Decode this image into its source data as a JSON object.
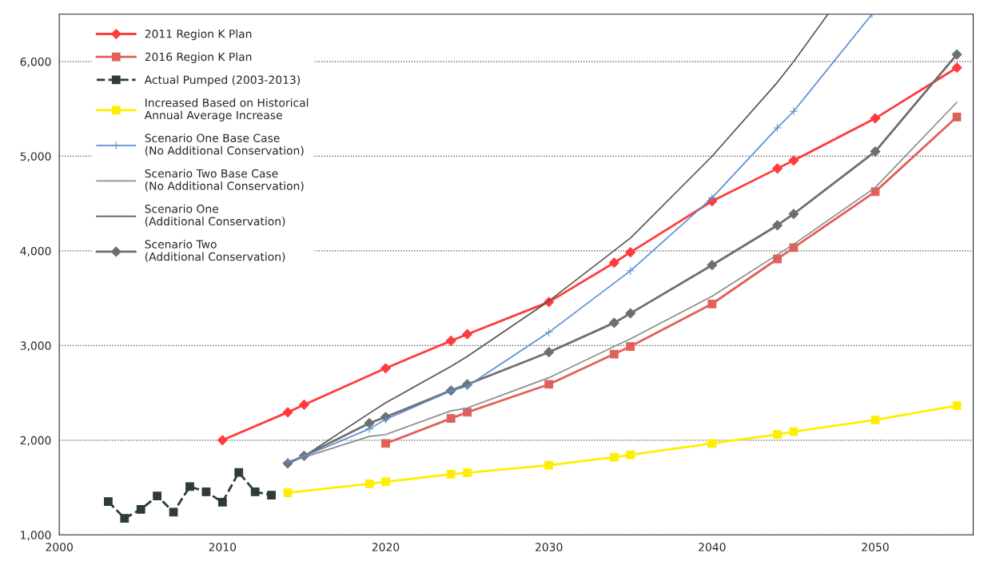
{
  "chart_data": {
    "type": "line",
    "xlim": [
      2000,
      2056
    ],
    "ylim": [
      1000,
      6500
    ],
    "xticks": [
      2000,
      2010,
      2020,
      2030,
      2040,
      2050
    ],
    "yticks": [
      {
        "value": 1000,
        "label": "1,000"
      },
      {
        "value": 2000,
        "label": "2,000"
      },
      {
        "value": 3000,
        "label": "3,000"
      },
      {
        "value": 4000,
        "label": "4,000"
      },
      {
        "value": 5000,
        "label": "5,000"
      },
      {
        "value": 6000,
        "label": "6,000"
      }
    ],
    "grid": "y",
    "legend": "top left",
    "series": [
      {
        "name": "2011 Region K Plan",
        "color": "#ff3b3b",
        "marker": "diamond",
        "line_style": "solid",
        "x": [
          2010,
          2014,
          2015,
          2020,
          2024,
          2025,
          2030,
          2034,
          2035,
          2040,
          2044,
          2045,
          2050,
          2055
        ],
        "values": [
          2000,
          2295,
          2375,
          2760,
          3050,
          3120,
          3460,
          3875,
          3985,
          4525,
          4870,
          4955,
          5400,
          5935
        ]
      },
      {
        "name": "2016 Region K Plan",
        "color": "#e0605a",
        "marker": "square",
        "line_style": "solid",
        "x": [
          2020,
          2024,
          2025,
          2030,
          2034,
          2035,
          2040,
          2044,
          2045,
          2050,
          2055
        ],
        "values": [
          1965,
          2230,
          2295,
          2590,
          2910,
          2990,
          3440,
          3915,
          4035,
          4625,
          5415
        ]
      },
      {
        "name": "Actual Pumped (2003-2013)",
        "color": "#2f3a3a",
        "marker": "square",
        "line_style": "dashed",
        "x": [
          2003,
          2004,
          2005,
          2006,
          2007,
          2008,
          2009,
          2010,
          2011,
          2012,
          2013
        ],
        "values": [
          1352,
          1175,
          1270,
          1410,
          1240,
          1510,
          1455,
          1345,
          1660,
          1455,
          1420
        ]
      },
      {
        "name": "Increased Based on Historical\nAnnual Average Increase",
        "color": "#ffee00",
        "marker": "square",
        "line_style": "solid",
        "x": [
          2014,
          2019,
          2020,
          2024,
          2025,
          2030,
          2034,
          2035,
          2040,
          2044,
          2045,
          2050,
          2055
        ],
        "values": [
          1445,
          1540,
          1560,
          1640,
          1655,
          1735,
          1820,
          1845,
          1965,
          2060,
          2090,
          2215,
          2365
        ]
      },
      {
        "name": "Scenario One Base Case\n(No Additional Conservation)",
        "color": "#5b8fd0",
        "marker": "cross",
        "line_style": "solid",
        "x": [
          2014,
          2015,
          2019,
          2020,
          2024,
          2025,
          2030,
          2035,
          2040,
          2044,
          2045,
          2049.8
        ],
        "values": [
          1770,
          1830,
          2120,
          2220,
          2520,
          2570,
          3140,
          3790,
          4560,
          5300,
          5475,
          6500
        ]
      },
      {
        "name": "Scenario Two Base Case\n(No Additional Conservation)",
        "color": "#8c8c8c",
        "marker": "none",
        "line_style": "solid",
        "x": [
          2014,
          2015,
          2019,
          2020,
          2024,
          2025,
          2030,
          2034,
          2035,
          2040,
          2044,
          2045,
          2050,
          2055
        ],
        "values": [
          1770,
          1820,
          2040,
          2060,
          2310,
          2340,
          2660,
          2990,
          3070,
          3520,
          3960,
          4070,
          4670,
          5570
        ]
      },
      {
        "name": "Scenario One\n(Additional Conservation)",
        "color": "#555555",
        "marker": "none",
        "line_style": "solid",
        "x": [
          2014,
          2015,
          2019,
          2020,
          2024,
          2025,
          2030,
          2035,
          2040,
          2044,
          2045,
          2047.1
        ],
        "values": [
          1760,
          1830,
          2285,
          2395,
          2780,
          2885,
          3470,
          4135,
          5000,
          5780,
          6000,
          6500
        ]
      },
      {
        "name": "Scenario Two\n(Additional Conservation)",
        "color": "#6e6e6e",
        "marker": "diamond",
        "line_style": "solid",
        "x": [
          2014,
          2015,
          2019,
          2020,
          2024,
          2025,
          2030,
          2034,
          2035,
          2040,
          2044,
          2045,
          2050,
          2055
        ],
        "values": [
          1755,
          1835,
          2180,
          2245,
          2525,
          2590,
          2930,
          3240,
          3340,
          3850,
          4270,
          4390,
          5050,
          6075
        ]
      }
    ]
  }
}
